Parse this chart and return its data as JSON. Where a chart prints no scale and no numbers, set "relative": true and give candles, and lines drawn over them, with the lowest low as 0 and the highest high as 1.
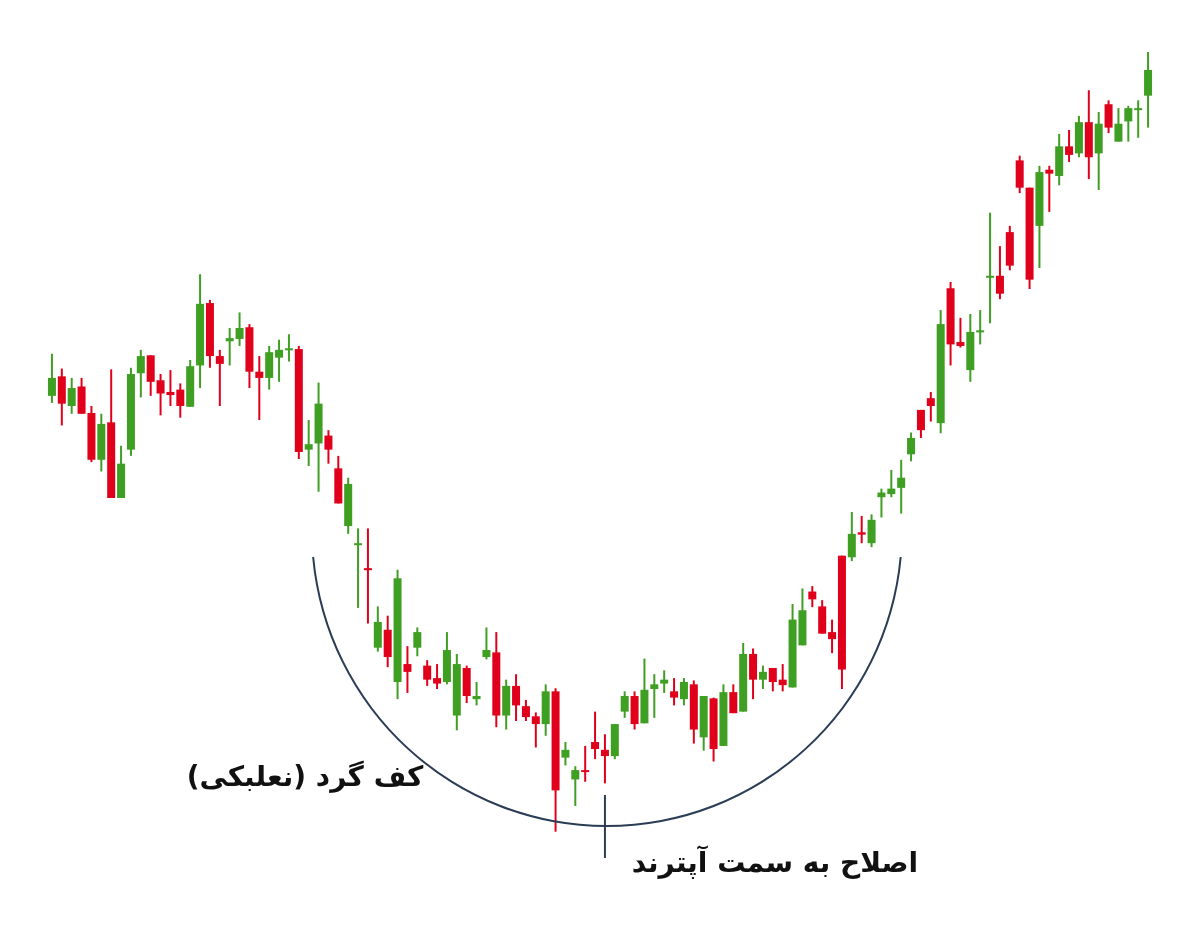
{
  "chart_data": {
    "type": "candlestick",
    "relative": true,
    "categories": [
      null,
      null,
      null,
      null,
      null,
      null,
      null,
      null,
      null,
      null,
      null,
      null,
      null,
      null,
      null,
      null,
      null,
      null,
      null,
      null,
      null,
      null,
      null,
      null,
      null,
      null,
      null,
      null,
      null,
      null,
      null,
      null,
      null,
      null,
      null,
      null,
      null,
      null,
      null,
      null,
      null,
      null,
      null,
      null,
      null,
      null,
      null,
      null,
      null,
      null,
      null,
      null,
      null,
      null,
      null,
      null,
      null,
      null,
      null,
      null,
      null,
      null,
      null,
      null,
      null,
      null,
      null,
      null,
      null,
      null,
      null,
      null,
      null,
      null,
      null,
      null,
      null,
      null,
      null,
      null,
      null,
      null,
      null,
      null,
      null,
      null,
      null,
      null,
      null,
      null,
      null,
      null,
      null,
      null,
      null,
      null,
      null,
      null,
      null,
      null,
      null,
      null,
      null,
      null,
      null,
      null,
      null,
      null,
      null,
      null,
      null,
      null
    ],
    "ohlc": [
      [
        0.559,
        0.613,
        0.55,
        0.582
      ],
      [
        0.584,
        0.594,
        0.521,
        0.549
      ],
      [
        0.546,
        0.582,
        0.536,
        0.569
      ],
      [
        0.571,
        0.582,
        0.536,
        0.536
      ],
      [
        0.537,
        0.546,
        0.474,
        0.477
      ],
      [
        0.477,
        0.536,
        0.462,
        0.523
      ],
      [
        0.525,
        0.593,
        0.428,
        0.428
      ],
      [
        0.428,
        0.495,
        0.428,
        0.472
      ],
      [
        0.49,
        0.595,
        0.482,
        0.587
      ],
      [
        0.588,
        0.618,
        0.557,
        0.61
      ],
      [
        0.611,
        0.611,
        0.559,
        0.577
      ],
      [
        0.579,
        0.587,
        0.534,
        0.562
      ],
      [
        0.564,
        0.592,
        0.546,
        0.56
      ],
      [
        0.567,
        0.575,
        0.531,
        0.546
      ],
      [
        0.545,
        0.605,
        0.545,
        0.597
      ],
      [
        0.598,
        0.715,
        0.569,
        0.677
      ],
      [
        0.678,
        0.682,
        0.595,
        0.61
      ],
      [
        0.61,
        0.618,
        0.546,
        0.6
      ],
      [
        0.629,
        0.646,
        0.598,
        0.633
      ],
      [
        0.632,
        0.666,
        0.623,
        0.646
      ],
      [
        0.647,
        0.651,
        0.569,
        0.59
      ],
      [
        0.59,
        0.61,
        0.528,
        0.582
      ],
      [
        0.582,
        0.623,
        0.567,
        0.615
      ],
      [
        0.608,
        0.631,
        0.577,
        0.618
      ],
      [
        0.619,
        0.638,
        0.603,
        0.62
      ],
      [
        0.619,
        0.623,
        0.478,
        0.487
      ],
      [
        0.49,
        0.528,
        0.469,
        0.497
      ],
      [
        0.498,
        0.576,
        0.436,
        0.549
      ],
      [
        0.508,
        0.515,
        0.472,
        0.49
      ],
      [
        0.466,
        0.482,
        0.421,
        0.421
      ],
      [
        0.392,
        0.454,
        0.382,
        0.446
      ],
      [
        0.368,
        0.389,
        0.287,
        0.37
      ],
      [
        0.338,
        0.389,
        0.267,
        0.337
      ],
      [
        0.236,
        0.289,
        0.231,
        0.269
      ],
      [
        0.259,
        0.277,
        0.211,
        0.224
      ],
      [
        0.192,
        0.336,
        0.17,
        0.325
      ],
      [
        0.215,
        0.238,
        0.178,
        0.205
      ],
      [
        0.236,
        0.262,
        0.225,
        0.256
      ],
      [
        0.213,
        0.22,
        0.187,
        0.195
      ],
      [
        0.197,
        0.215,
        0.183,
        0.19
      ],
      [
        0.192,
        0.256,
        0.189,
        0.233
      ],
      [
        0.149,
        0.228,
        0.13,
        0.215
      ],
      [
        0.21,
        0.213,
        0.165,
        0.174
      ],
      [
        0.17,
        0.192,
        0.162,
        0.174
      ],
      [
        0.224,
        0.262,
        0.221,
        0.233
      ],
      [
        0.23,
        0.256,
        0.134,
        0.149
      ],
      [
        0.149,
        0.195,
        0.131,
        0.187
      ],
      [
        0.187,
        0.202,
        0.142,
        0.162
      ],
      [
        0.161,
        0.169,
        0.142,
        0.147
      ],
      [
        0.148,
        0.153,
        0.108,
        0.138
      ],
      [
        0.138,
        0.189,
        0.123,
        0.18
      ],
      [
        0.18,
        0.184,
        0,
        0.053
      ],
      [
        0.095,
        0.115,
        0.085,
        0.105
      ],
      [
        0.067,
        0.084,
        0.033,
        0.079
      ],
      [
        0.079,
        0.11,
        0.064,
        0.077
      ],
      [
        0.115,
        0.154,
        0.093,
        0.106
      ],
      [
        0.105,
        0.125,
        0.062,
        0.097
      ],
      [
        0.097,
        0.138,
        0.093,
        0.138
      ],
      [
        0.154,
        0.18,
        0.146,
        0.174
      ],
      [
        0.174,
        0.18,
        0.131,
        0.138
      ],
      [
        0.139,
        0.222,
        0.139,
        0.182
      ],
      [
        0.183,
        0.202,
        0.146,
        0.189
      ],
      [
        0.19,
        0.207,
        0.178,
        0.195
      ],
      [
        0.18,
        0.197,
        0.162,
        0.172
      ],
      [
        0.17,
        0.197,
        0.162,
        0.192
      ],
      [
        0.189,
        0.194,
        0.113,
        0.131
      ],
      [
        0.121,
        0.174,
        0.104,
        0.174
      ],
      [
        0.171,
        0.172,
        0.09,
        0.106
      ],
      [
        0.11,
        0.189,
        0.11,
        0.179
      ],
      [
        0.179,
        0.189,
        0.152,
        0.152
      ],
      [
        0.154,
        0.242,
        0.154,
        0.228
      ],
      [
        0.228,
        0.235,
        0.17,
        0.195
      ],
      [
        0.195,
        0.213,
        0.183,
        0.205
      ],
      [
        0.21,
        0.21,
        0.18,
        0.192
      ],
      [
        0.195,
        0.215,
        0.18,
        0.188
      ],
      [
        0.185,
        0.292,
        0.185,
        0.272
      ],
      [
        0.239,
        0.312,
        0.239,
        0.284
      ],
      [
        0.308,
        0.315,
        0.288,
        0.298
      ],
      [
        0.289,
        0.297,
        0.254,
        0.254
      ],
      [
        0.256,
        0.272,
        0.229,
        0.247
      ],
      [
        0.354,
        0.354,
        0.183,
        0.208
      ],
      [
        0.352,
        0.41,
        0.347,
        0.382
      ],
      [
        0.384,
        0.405,
        0.37,
        0.381
      ],
      [
        0.37,
        0.407,
        0.365,
        0.4
      ],
      [
        0.429,
        0.44,
        0.403,
        0.435
      ],
      [
        0.433,
        0.464,
        0.429,
        0.44
      ],
      [
        0.441,
        0.477,
        0.408,
        0.454
      ],
      [
        0.484,
        0.512,
        0.475,
        0.505
      ],
      [
        0.541,
        0.541,
        0.505,
        0.515
      ],
      [
        0.556,
        0.564,
        0.526,
        0.546
      ],
      [
        0.524,
        0.669,
        0.511,
        0.651
      ],
      [
        0.697,
        0.705,
        0.598,
        0.625
      ],
      [
        0.628,
        0.659,
        0.621,
        0.623
      ],
      [
        0.592,
        0.664,
        0.577,
        0.641
      ],
      [
        0.642,
        0.669,
        0.625,
        0.643
      ],
      [
        0.711,
        0.794,
        0.652,
        0.713
      ],
      [
        0.713,
        0.751,
        0.683,
        0.69
      ],
      [
        0.769,
        0.777,
        0.72,
        0.726
      ],
      [
        0.861,
        0.867,
        0.819,
        0.826
      ],
      [
        0.826,
        0.826,
        0.696,
        0.708
      ],
      [
        0.777,
        0.854,
        0.723,
        0.846
      ],
      [
        0.849,
        0.854,
        0.795,
        0.844
      ],
      [
        0.841,
        0.895,
        0.829,
        0.879
      ],
      [
        0.879,
        0.9,
        0.859,
        0.868
      ],
      [
        0.87,
        0.918,
        0.865,
        0.91
      ],
      [
        0.91,
        0.951,
        0.837,
        0.865
      ],
      [
        0.87,
        0.923,
        0.823,
        0.908
      ],
      [
        0.933,
        0.938,
        0.896,
        0.903
      ],
      [
        0.885,
        0.928,
        0.885,
        0.908
      ],
      [
        0.911,
        0.931,
        0.885,
        0.928
      ],
      [
        0.927,
        0.938,
        0.89,
        0.928
      ],
      [
        0.944,
        1,
        0.903,
        0.977
      ]
    ],
    "annotations": [
      "کف گرد (نعلبکی)",
      "اصلاح به سمت آپترند"
    ]
  }
}
